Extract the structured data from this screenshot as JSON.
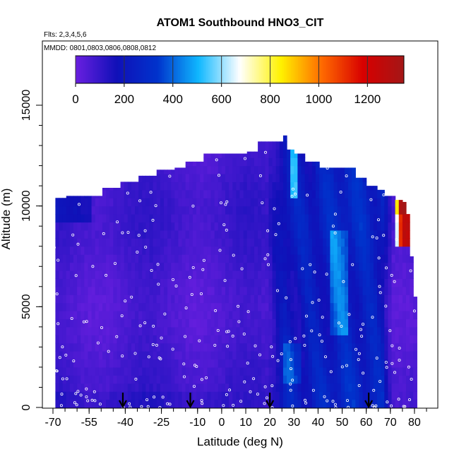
{
  "chart_data": {
    "type": "heatmap",
    "title": "ATOM1 Southbound HNO3_CIT",
    "subtitle_flights": "Flts: 2,3,4,5,6",
    "subtitle_dates": "MMDD: 0801,0803,0806,0808,0812",
    "xlabel": "Latitude (deg N)",
    "ylabel": "Altitude (m)",
    "xlim": [
      -70,
      85
    ],
    "ylim": [
      0,
      17500
    ],
    "x_ticks": [
      -70,
      -55,
      -40,
      -25,
      -10,
      0,
      10,
      20,
      30,
      40,
      50,
      60,
      70,
      80
    ],
    "y_ticks": [
      0,
      5000,
      10000,
      15000
    ],
    "colorbar": {
      "range": [
        0,
        1350
      ],
      "ticks": [
        0,
        200,
        400,
        600,
        800,
        1000,
        1200
      ],
      "colors": [
        "#6a1fe0",
        "#1010b8",
        "#0033cc",
        "#10b8ff",
        "#ffffff",
        "#fff200",
        "#ff6a00",
        "#d80000",
        "#a31616"
      ]
    },
    "arrows_latitude": [
      -41,
      -13,
      20,
      61
    ],
    "profile_envelope": [
      [
        -70,
        0,
        10400
      ],
      [
        -68,
        0,
        10400
      ],
      [
        -65,
        0,
        10500
      ],
      [
        -60,
        0,
        10500
      ],
      [
        -57,
        0,
        10500
      ],
      [
        -50,
        0,
        10900
      ],
      [
        -42,
        0,
        11200
      ],
      [
        -35,
        0,
        11500
      ],
      [
        -27,
        0,
        11800
      ],
      [
        -20,
        0,
        11900
      ],
      [
        -15,
        0,
        12200
      ],
      [
        -8,
        0,
        12600
      ],
      [
        -2,
        0,
        12600
      ],
      [
        5,
        0,
        12600
      ],
      [
        10,
        0,
        12700
      ],
      [
        15,
        0,
        13200
      ],
      [
        20,
        0,
        13200
      ],
      [
        25,
        0,
        13200
      ],
      [
        26,
        0,
        13500
      ],
      [
        27,
        0,
        12800
      ],
      [
        30,
        0,
        12600
      ],
      [
        35,
        0,
        12200
      ],
      [
        40,
        0,
        11900
      ],
      [
        48,
        0,
        11900
      ],
      [
        55,
        0,
        11400
      ],
      [
        60,
        0,
        11000
      ],
      [
        65,
        0,
        10800
      ],
      [
        68,
        0,
        10500
      ],
      [
        72,
        0,
        10300
      ],
      [
        75,
        0,
        10200
      ],
      [
        77,
        0,
        9600
      ],
      [
        78,
        0,
        7500
      ],
      [
        80,
        0,
        5500
      ],
      [
        81,
        0,
        4000
      ]
    ]
  }
}
